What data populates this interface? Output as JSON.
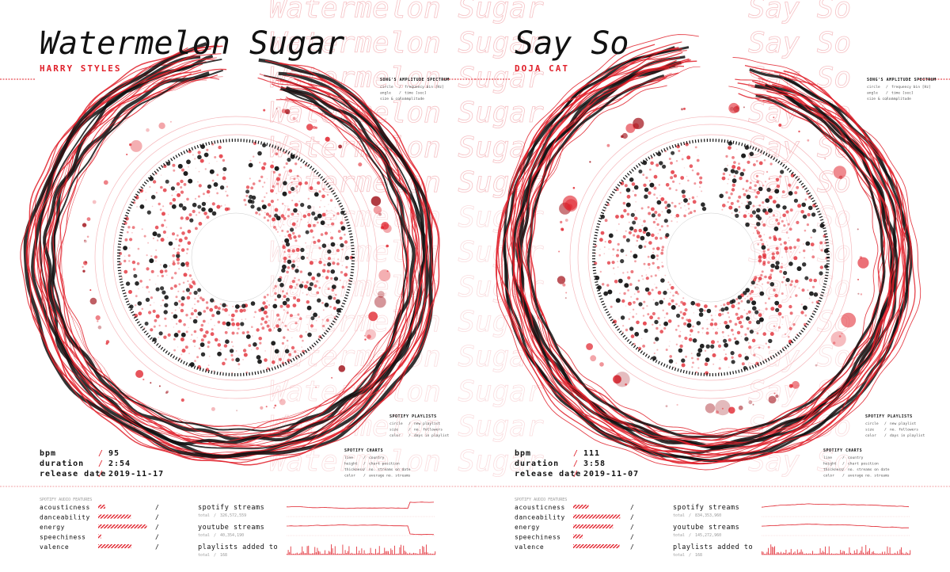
{
  "separator": "/",
  "posters": [
    {
      "title": "Watermelon Sugar",
      "artist": "HARRY STYLES",
      "stats": [
        {
          "label": "bpm",
          "value": "95"
        },
        {
          "label": "duration",
          "value": "2:54"
        },
        {
          "label": "release date",
          "value": "2019-11-17"
        }
      ],
      "legends": [
        {
          "title": "SONG'S AMPLITUDE SPECTRUM",
          "rows": [
            [
              "circle",
              "frequency bin [Hz]"
            ],
            [
              "angle",
              "time [sec]"
            ],
            [
              "size & color",
              "amplitude"
            ]
          ]
        },
        {
          "title": "SPOTIFY PLAYLISTS",
          "rows": [
            [
              "circle",
              "new playlist"
            ],
            [
              "size",
              "no. followers"
            ],
            [
              "color",
              "days in playlist"
            ]
          ]
        },
        {
          "title": "SPOTIFY CHARTS",
          "rows": [
            [
              "line",
              "country"
            ],
            [
              "height",
              "chart position"
            ],
            [
              "thickness",
              "no. streams on date"
            ],
            [
              "color",
              "average no. streams"
            ]
          ]
        }
      ],
      "audio_features": {
        "title": "SPOTIFY AUDIO FEATURES",
        "items": [
          {
            "name": "acousticness",
            "value": 0.12
          },
          {
            "name": "danceability",
            "value": 0.55
          },
          {
            "name": "energy",
            "value": 0.82
          },
          {
            "name": "speechiness",
            "value": 0.05
          },
          {
            "name": "valence",
            "value": 0.56
          }
        ]
      },
      "streams": [
        {
          "label": "spotify streams",
          "total_label": "total",
          "total": "326,572,559"
        },
        {
          "label": "youtube streams",
          "total_label": "total",
          "total": "40,354,190"
        },
        {
          "label": "playlists added to",
          "total_label": "total",
          "total": "168"
        }
      ]
    },
    {
      "title": "Say So",
      "artist": "DOJA CAT",
      "stats": [
        {
          "label": "bpm",
          "value": "111"
        },
        {
          "label": "duration",
          "value": "3:58"
        },
        {
          "label": "release date",
          "value": "2019-11-07"
        }
      ],
      "legends": [
        {
          "title": "SONG'S AMPLITUDE SPECTRUM",
          "rows": [
            [
              "circle",
              "frequency bin [Hz]"
            ],
            [
              "angle",
              "time [sec]"
            ],
            [
              "size & color",
              "amplitude"
            ]
          ]
        },
        {
          "title": "SPOTIFY PLAYLISTS",
          "rows": [
            [
              "circle",
              "new playlist"
            ],
            [
              "size",
              "no. followers"
            ],
            [
              "color",
              "days in playlist"
            ]
          ]
        },
        {
          "title": "SPOTIFY CHARTS",
          "rows": [
            [
              "line",
              "country"
            ],
            [
              "height",
              "chart position"
            ],
            [
              "thickness",
              "no. streams on date"
            ],
            [
              "color",
              "average no. streams"
            ]
          ]
        }
      ],
      "audio_features": {
        "title": "SPOTIFY AUDIO FEATURES",
        "items": [
          {
            "name": "acousticness",
            "value": 0.26
          },
          {
            "name": "danceability",
            "value": 0.79
          },
          {
            "name": "energy",
            "value": 0.67
          },
          {
            "name": "speechiness",
            "value": 0.16
          },
          {
            "name": "valence",
            "value": 0.78
          }
        ]
      },
      "streams": [
        {
          "label": "spotify streams",
          "total_label": "total",
          "total": "834,353,960"
        },
        {
          "label": "youtube streams",
          "total_label": "total",
          "total": "145,272,960"
        },
        {
          "label": "playlists added to",
          "total_label": "total",
          "total": "168"
        }
      ]
    }
  ]
}
